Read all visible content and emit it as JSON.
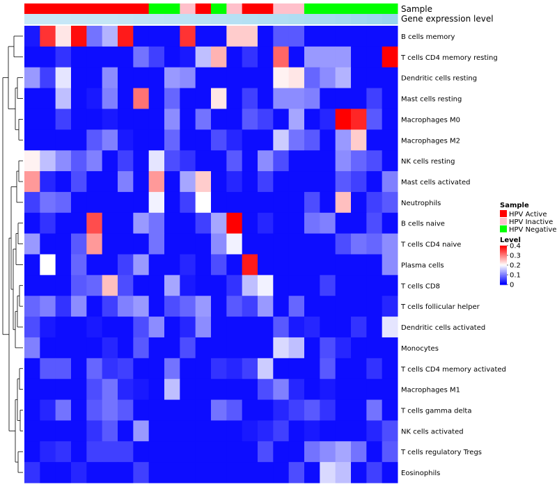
{
  "chart_data": {
    "type": "heatmap",
    "annotation_labels": [
      "Sample",
      "Gene expression level"
    ],
    "row_labels": [
      "B cells memory",
      "T cells CD4 memory resting",
      "Dendritic cells resting",
      "Mast cells resting",
      "Macrophages M0",
      "Macrophages M2",
      "NK cells resting",
      "Mast cells activated",
      "Neutrophils",
      "B cells naive",
      "T cells CD4 naive",
      "Plasma cells",
      "T cells CD8",
      "T cells follicular helper",
      "Dendritic cells activated",
      "Monocytes",
      "T cells CD4 memory activated",
      "Macrophages M1",
      "T cells gamma delta",
      "NK cells activated",
      "T cells regulatory  Tregs",
      "Eosinophils"
    ],
    "sample_annotation": [
      "Active",
      "Active",
      "Active",
      "Active",
      "Active",
      "Active",
      "Active",
      "Active",
      "Negative",
      "Negative",
      "Inactive",
      "Active",
      "Negative",
      "Inactive",
      "Active",
      "Active",
      "Inactive",
      "Inactive",
      "Negative",
      "Negative",
      "Negative",
      "Negative",
      "Negative",
      "Negative"
    ],
    "gene_expression_annotation": [
      0.25,
      0.26,
      0.27,
      0.28,
      0.29,
      0.3,
      0.32,
      0.34,
      0.36,
      0.38,
      0.4,
      0.42,
      0.44,
      0.46,
      0.48,
      0.5,
      0.52,
      0.55,
      0.58,
      0.62,
      0.66,
      0.7,
      0.75,
      0.8
    ],
    "values": [
      [
        0.02,
        0.36,
        0.22,
        0.39,
        0.09,
        0.14,
        0.38,
        0.01,
        0.01,
        0.01,
        0.36,
        0.01,
        0.01,
        0.24,
        0.24,
        0.01,
        0.07,
        0.07,
        0.01,
        0.01,
        0.01,
        0.01,
        0.01,
        0.01
      ],
      [
        0.01,
        0.01,
        0.04,
        0.01,
        0.01,
        0.01,
        0.01,
        0.09,
        0.05,
        0.01,
        0.02,
        0.15,
        0.26,
        0.01,
        0.04,
        0.01,
        0.32,
        0.01,
        0.12,
        0.12,
        0.12,
        0.01,
        0.01,
        0.4
      ],
      [
        0.12,
        0.05,
        0.18,
        0.01,
        0.01,
        0.11,
        0.01,
        0.01,
        0.01,
        0.12,
        0.11,
        0.01,
        0.01,
        0.01,
        0.01,
        0.01,
        0.21,
        0.22,
        0.08,
        0.11,
        0.14,
        0.01,
        0.01,
        0.01
      ],
      [
        0.01,
        0.01,
        0.15,
        0.01,
        0.02,
        0.1,
        0.01,
        0.31,
        0.01,
        0.08,
        0.01,
        0.01,
        0.22,
        0.01,
        0.05,
        0.01,
        0.11,
        0.11,
        0.1,
        0.01,
        0.01,
        0.01,
        0.05,
        0.01
      ],
      [
        0.01,
        0.01,
        0.05,
        0.01,
        0.01,
        0.02,
        0.01,
        0.01,
        0.01,
        0.11,
        0.01,
        0.09,
        0.01,
        0.01,
        0.07,
        0.05,
        0.01,
        0.13,
        0.01,
        0.03,
        0.4,
        0.37,
        0.07,
        0.01
      ],
      [
        0.01,
        0.01,
        0.01,
        0.01,
        0.07,
        0.1,
        0.02,
        0.01,
        0.01,
        0.08,
        0.01,
        0.01,
        0.06,
        0.03,
        0.01,
        0.01,
        0.16,
        0.09,
        0.07,
        0.01,
        0.12,
        0.24,
        0.01,
        0.01
      ],
      [
        0.21,
        0.15,
        0.11,
        0.07,
        0.1,
        0.01,
        0.05,
        0.01,
        0.18,
        0.06,
        0.04,
        0.01,
        0.01,
        0.07,
        0.01,
        0.11,
        0.06,
        0.01,
        0.01,
        0.01,
        0.11,
        0.08,
        0.06,
        0.01
      ],
      [
        0.28,
        0.03,
        0.01,
        0.06,
        0.01,
        0.01,
        0.1,
        0.01,
        0.28,
        0.01,
        0.13,
        0.24,
        0.01,
        0.03,
        0.01,
        0.05,
        0.01,
        0.01,
        0.01,
        0.01,
        0.07,
        0.05,
        0.01,
        0.1
      ],
      [
        0.05,
        0.09,
        0.08,
        0.01,
        0.01,
        0.01,
        0.01,
        0.01,
        0.19,
        0.01,
        0.05,
        0.2,
        0.01,
        0.01,
        0.01,
        0.01,
        0.01,
        0.01,
        0.06,
        0.01,
        0.25,
        0.01,
        0.05,
        0.07
      ],
      [
        0.01,
        0.04,
        0.01,
        0.01,
        0.34,
        0.01,
        0.01,
        0.12,
        0.09,
        0.01,
        0.01,
        0.05,
        0.13,
        0.4,
        0.01,
        0.03,
        0.01,
        0.01,
        0.09,
        0.1,
        0.01,
        0.01,
        0.06,
        0.01
      ],
      [
        0.12,
        0.01,
        0.01,
        0.07,
        0.28,
        0.01,
        0.01,
        0.01,
        0.09,
        0.01,
        0.01,
        0.01,
        0.11,
        0.19,
        0.01,
        0.01,
        0.01,
        0.01,
        0.01,
        0.01,
        0.06,
        0.09,
        0.08,
        0.11
      ],
      [
        0.01,
        0.2,
        0.01,
        0.08,
        0.01,
        0.01,
        0.05,
        0.12,
        0.01,
        0.01,
        0.03,
        0.01,
        0.06,
        0.01,
        0.38,
        0.01,
        0.01,
        0.01,
        0.01,
        0.01,
        0.01,
        0.01,
        0.01,
        0.11
      ],
      [
        0.01,
        0.01,
        0.01,
        0.07,
        0.08,
        0.25,
        0.06,
        0.01,
        0.01,
        0.13,
        0.02,
        0.01,
        0.01,
        0.04,
        0.15,
        0.19,
        0.01,
        0.01,
        0.01,
        0.05,
        0.01,
        0.01,
        0.01,
        0.01
      ],
      [
        0.08,
        0.1,
        0.04,
        0.11,
        0.01,
        0.05,
        0.1,
        0.12,
        0.01,
        0.06,
        0.08,
        0.12,
        0.01,
        0.07,
        0.05,
        0.12,
        0.01,
        0.08,
        0.01,
        0.01,
        0.01,
        0.01,
        0.01,
        0.03
      ],
      [
        0.06,
        0.02,
        0.01,
        0.01,
        0.02,
        0.01,
        0.01,
        0.06,
        0.11,
        0.01,
        0.03,
        0.11,
        0.01,
        0.01,
        0.01,
        0.01,
        0.07,
        0.02,
        0.03,
        0.01,
        0.01,
        0.04,
        0.01,
        0.18
      ],
      [
        0.1,
        0.01,
        0.01,
        0.01,
        0.01,
        0.03,
        0.01,
        0.07,
        0.01,
        0.01,
        0.06,
        0.01,
        0.01,
        0.01,
        0.01,
        0.01,
        0.17,
        0.15,
        0.01,
        0.06,
        0.03,
        0.01,
        0.01,
        0.01
      ],
      [
        0.01,
        0.07,
        0.07,
        0.01,
        0.08,
        0.04,
        0.05,
        0.01,
        0.01,
        0.09,
        0.01,
        0.01,
        0.04,
        0.03,
        0.05,
        0.16,
        0.01,
        0.01,
        0.01,
        0.07,
        0.01,
        0.01,
        0.04,
        0.01
      ],
      [
        0.01,
        0.01,
        0.01,
        0.01,
        0.06,
        0.09,
        0.03,
        0.02,
        0.01,
        0.15,
        0.01,
        0.01,
        0.01,
        0.01,
        0.01,
        0.06,
        0.1,
        0.03,
        0.01,
        0.02,
        0.01,
        0.01,
        0.01,
        0.01
      ],
      [
        0.01,
        0.03,
        0.09,
        0.01,
        0.07,
        0.09,
        0.07,
        0.01,
        0.01,
        0.01,
        0.01,
        0.01,
        0.09,
        0.07,
        0.01,
        0.01,
        0.03,
        0.05,
        0.07,
        0.04,
        0.01,
        0.01,
        0.09,
        0.01
      ],
      [
        0.01,
        0.01,
        0.01,
        0.01,
        0.04,
        0.07,
        0.01,
        0.12,
        0.01,
        0.01,
        0.01,
        0.01,
        0.01,
        0.01,
        0.02,
        0.03,
        0.05,
        0.01,
        0.02,
        0.01,
        0.01,
        0.01,
        0.03,
        0.06
      ],
      [
        0.01,
        0.03,
        0.04,
        0.01,
        0.05,
        0.05,
        0.05,
        0.01,
        0.01,
        0.01,
        0.01,
        0.01,
        0.01,
        0.01,
        0.01,
        0.06,
        0.01,
        0.01,
        0.09,
        0.11,
        0.13,
        0.09,
        0.01,
        0.07
      ],
      [
        0.04,
        0.01,
        0.01,
        0.03,
        0.01,
        0.01,
        0.01,
        0.05,
        0.01,
        0.01,
        0.01,
        0.01,
        0.01,
        0.01,
        0.01,
        0.01,
        0.01,
        0.06,
        0.01,
        0.17,
        0.15,
        0.01,
        0.05,
        0.01
      ]
    ],
    "color_scale": {
      "low": "#0000ff",
      "mid": "#ffffff",
      "high": "#ff0000",
      "range": [
        0,
        0.4
      ],
      "ticks": [
        0.4,
        0.3,
        0.2,
        0.1,
        0
      ]
    },
    "legend_sample": {
      "title": "Sample",
      "entries": [
        {
          "label": "HPV Active",
          "key": "Active",
          "color": "#ff0000"
        },
        {
          "label": "HPV Inactive",
          "key": "Inactive",
          "color": "#ffc0cb"
        },
        {
          "label": "HPV Negative",
          "key": "Negative",
          "color": "#00ff00"
        }
      ]
    },
    "legend_level": {
      "title": "Level"
    },
    "expression_colors": {
      "low": "#dff0fb",
      "high": "#87ceeb"
    }
  }
}
